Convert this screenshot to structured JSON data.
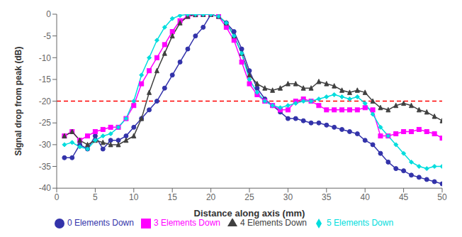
{
  "chart_data": {
    "type": "line",
    "title": "",
    "xlabel": "Distance along axis (mm)",
    "ylabel": "Signal drop from peak (dB)",
    "xlim": [
      0,
      50
    ],
    "ylim": [
      -40,
      0
    ],
    "xticks": [
      0,
      5,
      10,
      15,
      20,
      25,
      30,
      35,
      40,
      45,
      50
    ],
    "yticks": [
      0,
      -5,
      -10,
      -15,
      -20,
      -25,
      -30,
      -35,
      -40
    ],
    "grid": false,
    "legend": "bottom",
    "hlines": [
      {
        "value": -20,
        "color": "red",
        "line_style": "dashed"
      }
    ],
    "x": [
      1,
      2,
      3,
      4,
      5,
      6,
      7,
      8,
      9,
      10,
      11,
      12,
      13,
      14,
      15,
      16,
      17,
      18,
      19,
      20,
      21,
      22,
      23,
      24,
      25,
      26,
      27,
      28,
      29,
      30,
      31,
      32,
      33,
      34,
      35,
      36,
      37,
      38,
      39,
      40,
      41,
      42,
      43,
      44,
      45,
      46,
      47,
      48,
      49,
      50
    ],
    "series": [
      {
        "name": "0 Elements Down",
        "color": "#3333aa",
        "marker": "circle",
        "values": [
          -33,
          -33,
          -30,
          -31,
          -28,
          -31,
          -29,
          -29,
          -28,
          -26,
          -24,
          -22,
          -20,
          -17,
          -14,
          -11,
          -8,
          -5,
          -3,
          -0.05,
          -0.5,
          -2,
          -4,
          -8,
          -13,
          -17,
          -19.5,
          -21,
          -22.5,
          -24,
          -24,
          -24.5,
          -25,
          -25,
          -25.5,
          -26,
          -26.5,
          -27,
          -27.5,
          -29,
          -30,
          -32,
          -34,
          -35.5,
          -36,
          -37,
          -37.5,
          -38,
          -38.5,
          -39
        ]
      },
      {
        "name": "3 Elements Down",
        "color": "#ff00ff",
        "marker": "square",
        "values": [
          -28,
          -27,
          -29,
          -28,
          -27,
          -26.5,
          -26,
          -26,
          -24,
          -21,
          -16,
          -13,
          -10,
          -7,
          -4,
          -1.5,
          -0.5,
          -0.1,
          -0.05,
          -0.05,
          -0.5,
          -3,
          -6,
          -11,
          -16,
          -18.5,
          -20,
          -21,
          -22,
          -22,
          -20,
          -19.5,
          -20,
          -21,
          -22,
          -22,
          -22,
          -22,
          -22,
          -21.5,
          -22,
          -28,
          -28,
          -27.5,
          -27,
          -27,
          -26.5,
          -27,
          -27.5,
          -28.5
        ]
      },
      {
        "name": "4 Elements Down",
        "color": "#404040",
        "marker": "triangle",
        "values": [
          -28,
          -27,
          -29,
          -30,
          -29,
          -29.5,
          -30,
          -30,
          -29,
          -28,
          -24,
          -18,
          -13,
          -9,
          -5,
          -2,
          -0.5,
          -0.1,
          -0.05,
          -0.05,
          -0.5,
          -2,
          -5,
          -9,
          -14,
          -16,
          -17,
          -17.5,
          -17,
          -16,
          -16,
          -17,
          -17,
          -15.5,
          -16,
          -16.5,
          -17.5,
          -18,
          -17.5,
          -18,
          -20,
          -21.5,
          -22,
          -21,
          -20.5,
          -21,
          -22,
          -22.5,
          -23.5,
          -24.5
        ]
      },
      {
        "name": "5 Elements Down",
        "color": "#00dddd",
        "marker": "diamond",
        "values": [
          -30,
          -29.5,
          -30.5,
          -31,
          -29,
          -28,
          -27.5,
          -26,
          -24,
          -20,
          -14,
          -10,
          -6,
          -3,
          -1,
          -0.3,
          -0.05,
          -0.05,
          -0.05,
          -0.05,
          -0.5,
          -2,
          -5,
          -9,
          -15,
          -18,
          -20,
          -21,
          -21.5,
          -21,
          -20.5,
          -20,
          -20,
          -19.5,
          -19,
          -18.5,
          -19,
          -19.5,
          -19,
          -20.5,
          -23,
          -26,
          -28,
          -30,
          -32,
          -34,
          -35,
          -35.5,
          -35,
          -35
        ]
      }
    ]
  }
}
